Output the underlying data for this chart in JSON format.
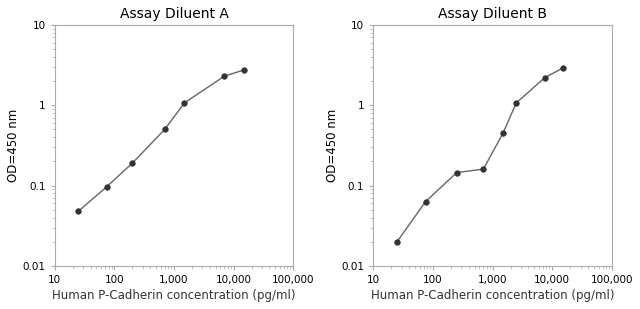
{
  "title_A": "Assay Diluent A",
  "title_B": "Assay Diluent B",
  "xlabel": "Human P-Cadherin concentration (pg/ml)",
  "ylabel": "OD=450 nm",
  "x_A": [
    25,
    75,
    200,
    700,
    1500,
    7000,
    15000
  ],
  "y_A": [
    0.048,
    0.097,
    0.19,
    0.5,
    1.07,
    2.3,
    2.75
  ],
  "x_B": [
    25,
    75,
    250,
    700,
    1500,
    2500,
    7500,
    15000
  ],
  "y_B": [
    0.02,
    0.063,
    0.145,
    0.16,
    0.45,
    1.07,
    2.2,
    2.9
  ],
  "xlim": [
    10,
    100000
  ],
  "ylim": [
    0.01,
    10
  ],
  "line_color": "#666666",
  "marker_color": "#333333",
  "marker_size": 4,
  "title_fontsize": 10,
  "label_fontsize": 8.5,
  "tick_fontsize": 7.5,
  "spine_color": "#aaaaaa",
  "xlabel_color": "#333333"
}
